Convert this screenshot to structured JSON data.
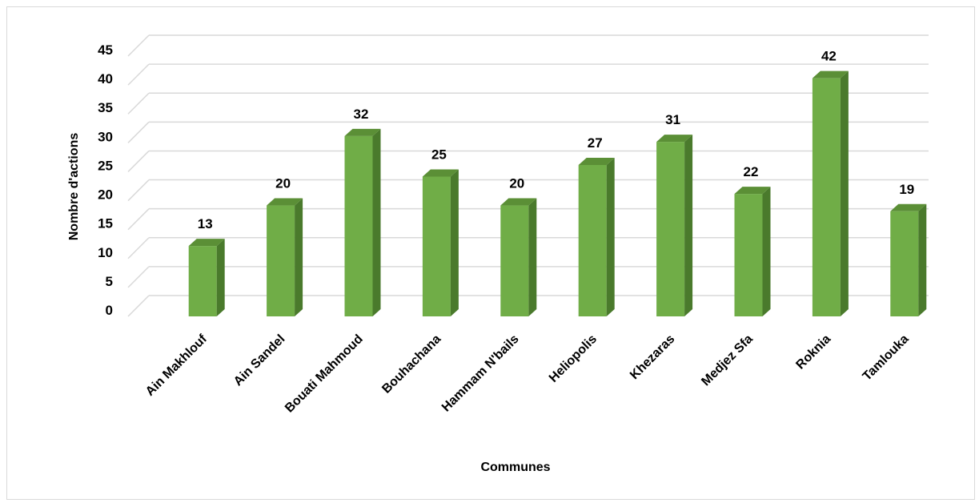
{
  "chart_data": {
    "type": "bar",
    "style": "3d-column",
    "xlabel": "Communes",
    "ylabel": "Nombre d'actions",
    "ylim": [
      0,
      45
    ],
    "yticks": [
      0,
      5,
      10,
      15,
      20,
      25,
      30,
      35,
      40,
      45
    ],
    "grid": true,
    "legend": "none",
    "categories": [
      "Ain Makhlouf",
      "Ain Sandel",
      "Bouati Mahmoud",
      "Bouhachana",
      "Hammam N'bails",
      "Heliopolis",
      "Khezaras",
      "Medjez Sfa",
      "Roknia",
      "Tamlouka"
    ],
    "values": [
      13,
      20,
      32,
      25,
      20,
      27,
      31,
      22,
      42,
      19
    ],
    "colors": {
      "bar_front": "#70ad47",
      "bar_side": "#4a7a2c",
      "bar_top": "#5b8f36",
      "grid": "#d9d9d9"
    }
  }
}
